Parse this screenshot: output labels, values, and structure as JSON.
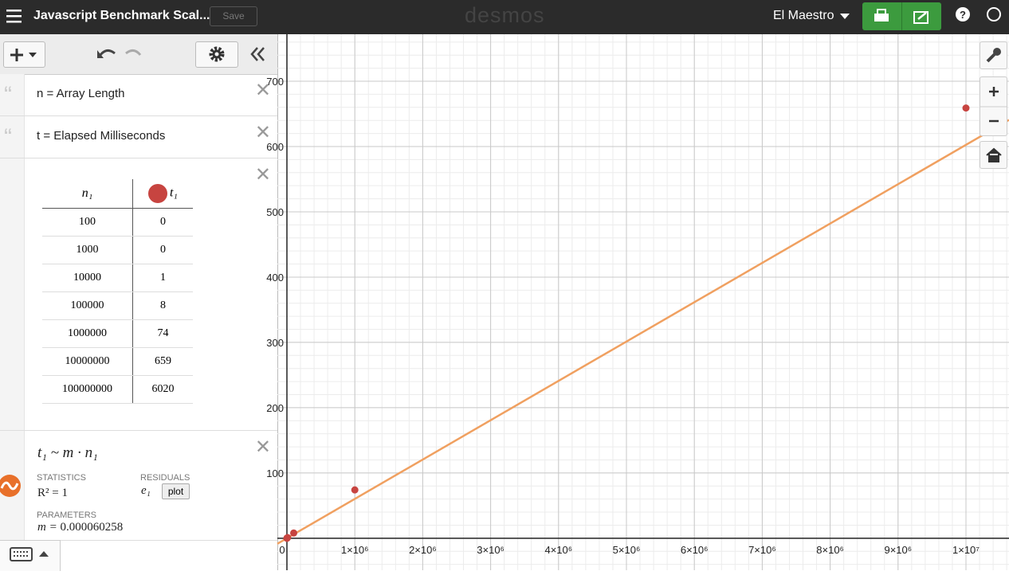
{
  "header": {
    "title": "Javascript Benchmark Scal...",
    "save": "Save",
    "logo": "desmos",
    "user": "El Maestro"
  },
  "expressions": {
    "note1": "n = Array Length",
    "note2": "t = Elapsed Milliseconds",
    "table": {
      "columns": [
        "n₁",
        "t₁"
      ],
      "n": [
        100,
        1000,
        10000,
        100000,
        1000000,
        10000000,
        100000000
      ],
      "t": [
        0,
        0,
        1,
        8,
        74,
        659,
        6020
      ]
    },
    "regression": {
      "equation": "t₁ ~ m · n₁",
      "statistics": "STATISTICS",
      "r2": "R² = 1",
      "residuals": "RESIDUALS",
      "residual_var": "e₁",
      "plot": "plot",
      "parameters": "PARAMETERS",
      "param_label": "m =",
      "param_value": 6.0258e-05
    }
  },
  "graph": {
    "xlim": [
      -140845,
      10633803
    ],
    "ylim": [
      -49,
      772
    ],
    "xticks": [
      0,
      {
        "value": 1000000,
        "label": "1×10⁶"
      },
      {
        "value": 2000000,
        "label": "2×10⁶"
      },
      {
        "value": 3000000,
        "label": "3×10⁶"
      },
      {
        "value": 4000000,
        "label": "4×10⁶"
      },
      {
        "value": 5000000,
        "label": "5×10⁶"
      },
      {
        "value": 6000000,
        "label": "6×10⁶"
      },
      {
        "value": 7000000,
        "label": "7×10⁶"
      },
      {
        "value": 8000000,
        "label": "8×10⁶"
      },
      {
        "value": 9000000,
        "label": "9×10⁶"
      },
      {
        "value": 10000000,
        "label": "1×10⁷"
      }
    ],
    "yticks": [
      100,
      200,
      300,
      400,
      500,
      600,
      700
    ],
    "point_color": "#c74440",
    "line_color": "#f0a060",
    "grid": true
  }
}
